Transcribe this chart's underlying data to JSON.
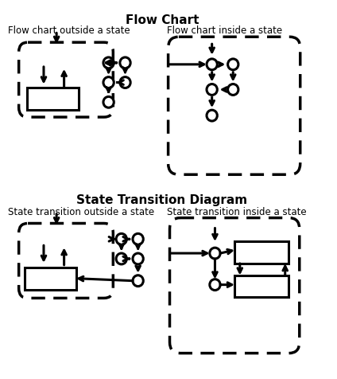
{
  "title1": "Flow Chart",
  "title2": "State Transition Diagram",
  "subtitle_fc_out": "Flow chart outside a state",
  "subtitle_fc_in": "Flow chart inside a state",
  "subtitle_st_out": "State transition outside a state",
  "subtitle_st_in": "State transition inside a state",
  "bg_color": "#ffffff"
}
